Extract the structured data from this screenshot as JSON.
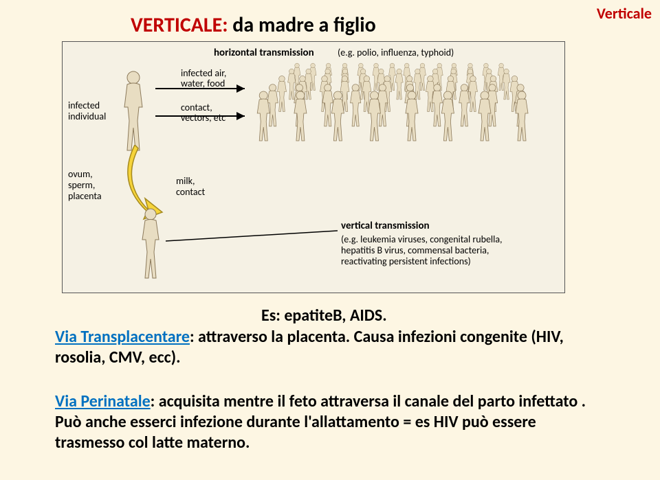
{
  "title": {
    "red": "VERTICALE:",
    "black": " da madre a figlio"
  },
  "cornerLabel": "Verticale",
  "diagram": {
    "horizontalTitle": "horizontal transmission",
    "horizontalEg": "(e.g. polio, influenza, typhoid)",
    "infected": "infected\nindividual",
    "arrow1": "infected air,\nwater, food",
    "arrow2": "contact,\nvectors, etc",
    "ovum": "ovum,\nsperm,\nplacenta",
    "milk": "milk,\ncontact",
    "verticalTitle": "vertical transmission",
    "verticalEg": "(e.g. leukemia viruses, congenital rubella,\nhepatitis B virus, commensal bacteria,\nreactivating persistent infections)"
  },
  "exampleLine": "Es: epatiteB, AIDS.",
  "para1": {
    "route": "Via Transplacentare",
    "rest": ": attraverso la placenta. Causa infezioni congenite (HIV, rosolia, CMV, ecc)."
  },
  "para2": {
    "route": "Via Perinatale",
    "rest": ": acquisita mentre il feto attraversa il canale del parto infettato . Può anche esserci infezione durante l'allattamento = es HIV può essere trasmesso col latte materno."
  }
}
